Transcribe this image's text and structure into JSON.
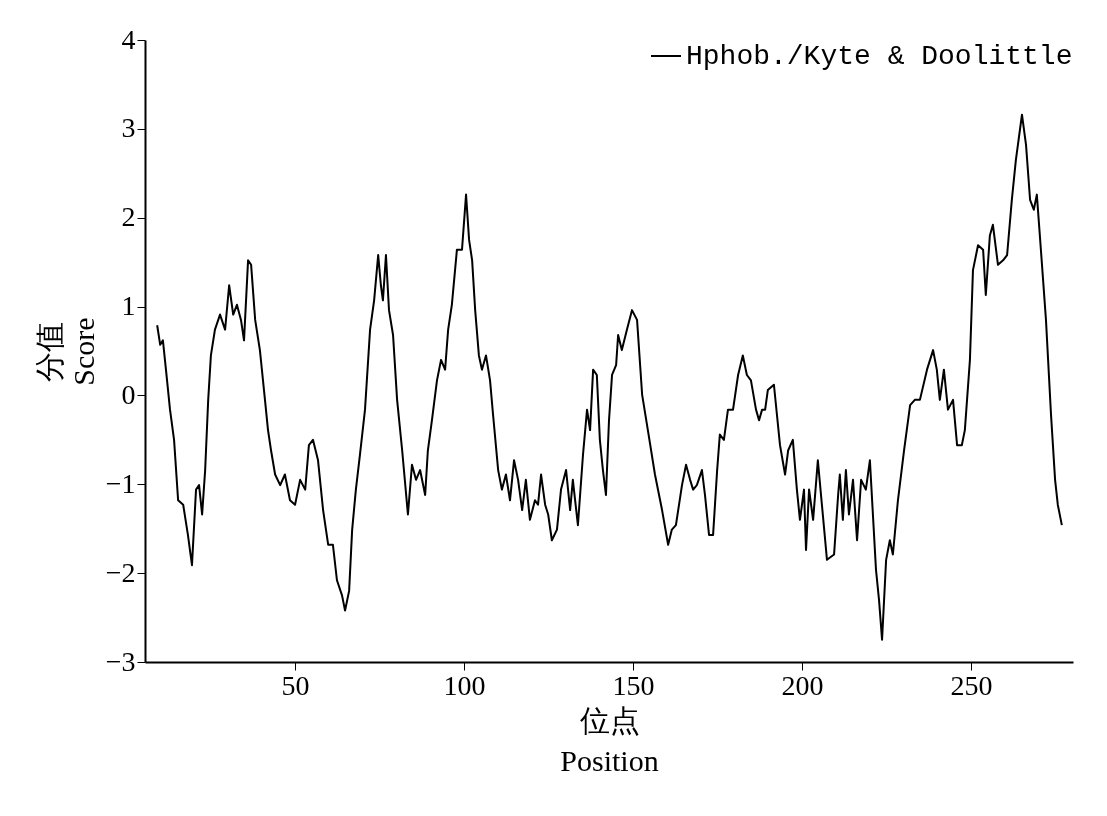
{
  "chart_data": {
    "type": "line",
    "xlabel": "位点\nPosition",
    "ylabel": "分值\nScore",
    "xlim": [
      5.6,
      280.2
    ],
    "xticks": [
      50,
      100,
      150,
      200,
      250
    ],
    "ylim": [
      -3,
      4
    ],
    "yticks": [
      -3,
      -2,
      -1,
      0,
      1,
      2,
      3,
      4
    ],
    "grid": false,
    "legend": "top right",
    "x": [
      9.2,
      10.1,
      10.9,
      11.8,
      13.0,
      14.2,
      15.4,
      16.9,
      18.3,
      19.5,
      20.7,
      21.6,
      22.5,
      23.4,
      24.3,
      25.1,
      26.3,
      27.8,
      29.3,
      30.5,
      31.7,
      32.8,
      34.0,
      34.9,
      36.1,
      37.0,
      38.2,
      39.6,
      41.1,
      42.0,
      42.9,
      44.1,
      45.6,
      47.0,
      48.5,
      50.0,
      51.5,
      53.0,
      54.1,
      55.3,
      56.8,
      58.3,
      59.8,
      61.2,
      62.4,
      63.9,
      64.8,
      66.0,
      66.9,
      68.0,
      69.2,
      70.7,
      72.2,
      73.4,
      74.6,
      75.4,
      76.0,
      76.9,
      77.8,
      79.0,
      80.2,
      81.7,
      83.4,
      84.6,
      85.8,
      87.0,
      88.5,
      89.3,
      90.5,
      92.0,
      93.2,
      94.4,
      95.3,
      96.4,
      97.9,
      99.4,
      100.6,
      101.5,
      102.4,
      103.3,
      104.4,
      105.3,
      106.5,
      107.7,
      108.6,
      110.1,
      111.2,
      112.4,
      113.6,
      114.8,
      116.0,
      117.2,
      118.3,
      119.5,
      121.0,
      121.9,
      122.8,
      124.0,
      124.9,
      126.0,
      127.5,
      128.7,
      130.2,
      131.4,
      132.2,
      133.7,
      135.2,
      136.4,
      137.3,
      138.2,
      139.3,
      140.2,
      141.1,
      142.0,
      142.9,
      143.8,
      145.0,
      145.6,
      146.7,
      148.2,
      149.7,
      151.2,
      152.7,
      154.4,
      156.5,
      158.6,
      160.4,
      161.5,
      162.7,
      164.5,
      165.7,
      166.9,
      167.8,
      168.9,
      170.4,
      171.3,
      172.5,
      173.7,
      174.9,
      175.7,
      176.9,
      178.1,
      179.6,
      181.1,
      182.5,
      183.7,
      184.9,
      186.4,
      187.3,
      188.2,
      189.1,
      189.9,
      191.7,
      193.5,
      195.0,
      195.9,
      197.3,
      198.5,
      199.4,
      200.6,
      201.2,
      202.1,
      203.3,
      204.7,
      205.9,
      207.4,
      209.5,
      210.7,
      211.2,
      212.1,
      213.0,
      213.9,
      215.1,
      216.3,
      217.5,
      218.9,
      220.1,
      221.9,
      222.8,
      223.7,
      224.9,
      226.0,
      226.9,
      228.4,
      230.2,
      232.0,
      233.4,
      234.9,
      237.0,
      238.8,
      239.9,
      240.8,
      242.0,
      243.2,
      244.7,
      245.9,
      247.3,
      248.2,
      249.7,
      250.6,
      252.1,
      253.6,
      254.4,
      255.6,
      256.5,
      258.0,
      259.5,
      260.7,
      262.1,
      263.3,
      264.5,
      265.1,
      266.3,
      267.5,
      268.6,
      269.5,
      270.7,
      272.2,
      273.7,
      274.9,
      275.7,
      276.9
    ],
    "series": [
      {
        "name": "Hphob./Kyte & Doolittle",
        "color": "#000000",
        "values": [
          0.79,
          0.57,
          0.62,
          0.29,
          -0.16,
          -0.5,
          -1.18,
          -1.23,
          -1.57,
          -1.91,
          -1.06,
          -1.01,
          -1.34,
          -0.84,
          -0.05,
          0.45,
          0.74,
          0.91,
          0.74,
          1.24,
          0.91,
          1.02,
          0.85,
          0.62,
          1.52,
          1.47,
          0.85,
          0.51,
          -0.05,
          -0.39,
          -0.62,
          -0.89,
          -1.01,
          -0.89,
          -1.18,
          -1.23,
          -0.95,
          -1.06,
          -0.56,
          -0.5,
          -0.73,
          -1.29,
          -1.68,
          -1.68,
          -2.08,
          -2.25,
          -2.42,
          -2.2,
          -1.51,
          -1.06,
          -0.67,
          -0.16,
          0.74,
          1.07,
          1.58,
          1.24,
          1.07,
          1.58,
          0.96,
          0.68,
          -0.05,
          -0.62,
          -1.34,
          -0.78,
          -0.95,
          -0.84,
          -1.12,
          -0.62,
          -0.28,
          0.17,
          0.4,
          0.29,
          0.74,
          1.02,
          1.64,
          1.64,
          2.26,
          1.75,
          1.52,
          0.96,
          0.45,
          0.29,
          0.45,
          0.17,
          -0.22,
          -0.84,
          -1.06,
          -0.89,
          -1.18,
          -0.73,
          -0.95,
          -1.29,
          -0.95,
          -1.4,
          -1.18,
          -1.23,
          -0.89,
          -1.23,
          -1.34,
          -1.63,
          -1.51,
          -1.06,
          -0.84,
          -1.29,
          -0.95,
          -1.46,
          -0.67,
          -0.16,
          -0.39,
          0.29,
          0.23,
          -0.5,
          -0.84,
          -1.12,
          -0.28,
          0.23,
          0.34,
          0.68,
          0.51,
          0.74,
          0.96,
          0.85,
          0.01,
          -0.39,
          -0.89,
          -1.29,
          -1.68,
          -1.51,
          -1.46,
          -1.01,
          -0.78,
          -0.95,
          -1.06,
          -1.01,
          -0.84,
          -1.12,
          -1.57,
          -1.57,
          -0.84,
          -0.44,
          -0.5,
          -0.16,
          -0.16,
          0.23,
          0.45,
          0.23,
          0.17,
          -0.16,
          -0.28,
          -0.16,
          -0.16,
          0.06,
          0.12,
          -0.56,
          -0.89,
          -0.62,
          -0.5,
          -1.06,
          -1.4,
          -1.06,
          -1.74,
          -1.06,
          -1.4,
          -0.73,
          -1.23,
          -1.85,
          -1.79,
          -1.12,
          -0.89,
          -1.4,
          -0.84,
          -1.34,
          -0.95,
          -1.63,
          -0.95,
          -1.06,
          -0.73,
          -1.96,
          -2.3,
          -2.75,
          -1.85,
          -1.63,
          -1.79,
          -1.18,
          -0.62,
          -0.11,
          -0.05,
          -0.05,
          0.29,
          0.51,
          0.29,
          -0.05,
          0.29,
          -0.16,
          -0.05,
          -0.56,
          -0.56,
          -0.39,
          0.4,
          1.41,
          1.69,
          1.64,
          1.13,
          1.8,
          1.92,
          1.47,
          1.52,
          1.58,
          2.2,
          2.65,
          2.99,
          3.16,
          2.82,
          2.2,
          2.09,
          2.26,
          1.64,
          0.85,
          -0.22,
          -0.95,
          -1.23,
          -1.46
        ]
      }
    ]
  }
}
